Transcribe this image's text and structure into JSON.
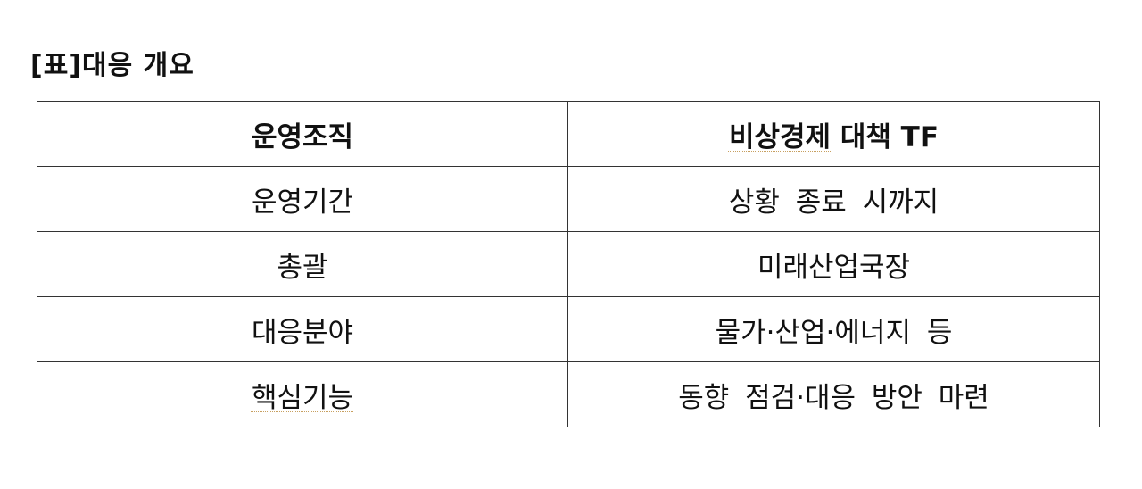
{
  "title": {
    "underlined": "[표]대응",
    "rest": " 개요"
  },
  "table": {
    "header": {
      "left": "운영조직",
      "right_underlined": "비상경제",
      "right_rest": " 대책 TF"
    },
    "rows": [
      {
        "label": "운영기간",
        "value": "상황 종료 시까지"
      },
      {
        "label": "총괄",
        "value": "미래산업국장"
      },
      {
        "label": "대응분야",
        "value": "물가·산업·에너지 등"
      },
      {
        "label": "핵심기능",
        "value": "동향 점검·대응 방안 마련"
      }
    ]
  }
}
